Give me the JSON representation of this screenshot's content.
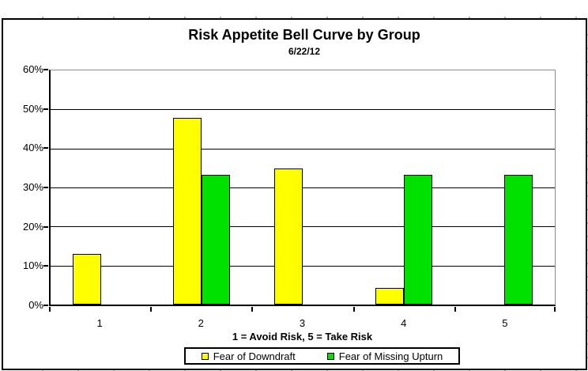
{
  "chart_data": {
    "type": "bar",
    "title": "Risk Appetite Bell Curve by Group",
    "subtitle": "6/22/12",
    "categories": [
      "1",
      "2",
      "3",
      "4",
      "5"
    ],
    "series": [
      {
        "name": "Fear of Downdraft",
        "color": "#FFFF00",
        "values": [
          13.0,
          47.8,
          34.8,
          4.3,
          0.0
        ]
      },
      {
        "name": "Fear of Missing Upturn",
        "color": "#00E100",
        "values": [
          0.0,
          33.3,
          0.0,
          33.3,
          33.3
        ]
      }
    ],
    "xlabel": "1 = Avoid Risk, 5 = Take Risk",
    "ylabel": "",
    "ylim": [
      0,
      60
    ],
    "ytick_step": 10,
    "ytick_labels": [
      "0%",
      "10%",
      "20%",
      "30%",
      "40%",
      "50%",
      "60%"
    ],
    "grid": true,
    "legend_position": "bottom",
    "colors": {
      "bar_border": "#000000",
      "gridline": "#000000",
      "plot_border": "#8C8C8C",
      "axis": "#000000",
      "background": "#FFFFFF"
    }
  }
}
